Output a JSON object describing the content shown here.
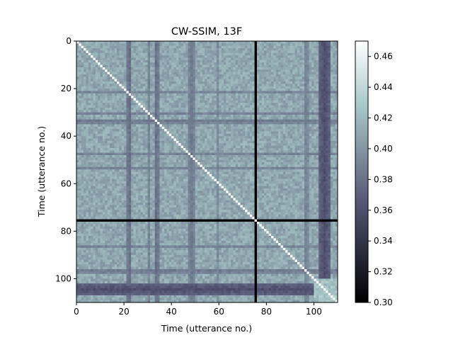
{
  "chart_data": {
    "type": "heatmap",
    "title": "CW-SSIM, 13F",
    "xlabel": "Time (utterance no.)",
    "ylabel": "Time (utterance no.)",
    "n": 110,
    "xlim": [
      0,
      110
    ],
    "ylim": [
      110,
      0
    ],
    "x_ticks": [
      0,
      20,
      40,
      60,
      80,
      100
    ],
    "y_ticks": [
      0,
      20,
      40,
      60,
      80,
      100
    ],
    "x_tick_labels": [
      "0",
      "20",
      "40",
      "60",
      "80",
      "100"
    ],
    "y_tick_labels": [
      "0",
      "20",
      "40",
      "60",
      "80",
      "100"
    ],
    "colormap": "bone",
    "vmin": 0.3,
    "vmax": 0.47,
    "colorbar_ticks": [
      0.3,
      0.32,
      0.34,
      0.36,
      0.38,
      0.4,
      0.42,
      0.44,
      0.46
    ],
    "colorbar_tick_labels": [
      "0.30",
      "0.32",
      "0.34",
      "0.36",
      "0.38",
      "0.40",
      "0.42",
      "0.44",
      "0.46"
    ],
    "diagonal_value": 0.47,
    "outlier_index": 75,
    "outlier_value": 0.3,
    "typical_value": 0.41,
    "dark_columns": [
      {
        "index": 21,
        "value": 0.385
      },
      {
        "index": 22,
        "value": 0.38
      },
      {
        "index": 30,
        "value": 0.39
      },
      {
        "index": 33,
        "value": 0.38
      },
      {
        "index": 34,
        "value": 0.385
      },
      {
        "index": 47,
        "value": 0.39
      },
      {
        "index": 48,
        "value": 0.385
      },
      {
        "index": 49,
        "value": 0.39
      },
      {
        "index": 59,
        "value": 0.395
      },
      {
        "index": 96,
        "value": 0.39
      },
      {
        "index": 97,
        "value": 0.395
      },
      {
        "index": 102,
        "value": 0.37
      },
      {
        "index": 103,
        "value": 0.365
      },
      {
        "index": 104,
        "value": 0.36
      },
      {
        "index": 105,
        "value": 0.365
      },
      {
        "index": 106,
        "value": 0.37
      }
    ],
    "dark_rows": [
      {
        "index": 21,
        "value": 0.39
      },
      {
        "index": 30,
        "value": 0.39
      },
      {
        "index": 33,
        "value": 0.385
      },
      {
        "index": 34,
        "value": 0.39
      },
      {
        "index": 47,
        "value": 0.39
      },
      {
        "index": 53,
        "value": 0.39
      },
      {
        "index": 86,
        "value": 0.39
      },
      {
        "index": 96,
        "value": 0.385
      },
      {
        "index": 97,
        "value": 0.39
      },
      {
        "index": 102,
        "value": 0.37
      },
      {
        "index": 103,
        "value": 0.365
      },
      {
        "index": 104,
        "value": 0.36
      },
      {
        "index": 105,
        "value": 0.365
      },
      {
        "index": 106,
        "value": 0.37
      }
    ]
  }
}
